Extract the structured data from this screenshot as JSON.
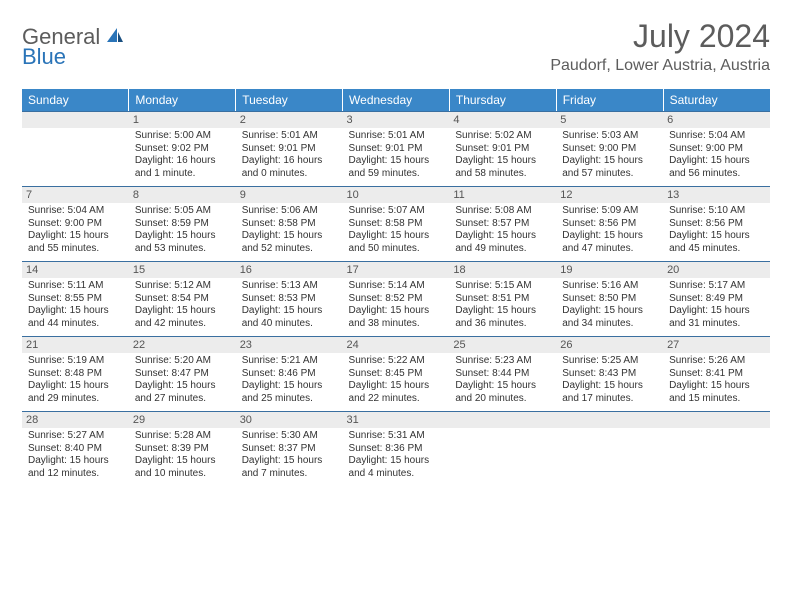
{
  "brand": {
    "general": "General",
    "blue": "Blue"
  },
  "title": "July 2024",
  "location": "Paudorf, Lower Austria, Austria",
  "colors": {
    "header_bg": "#3a87c8",
    "header_text": "#ffffff",
    "daynum_bg": "#ececec",
    "separator": "#3a6fa0",
    "text": "#333333",
    "title_text": "#5c5c5c"
  },
  "day_names": [
    "Sunday",
    "Monday",
    "Tuesday",
    "Wednesday",
    "Thursday",
    "Friday",
    "Saturday"
  ],
  "weeks": [
    [
      null,
      {
        "n": "1",
        "sr": "Sunrise: 5:00 AM",
        "ss": "Sunset: 9:02 PM",
        "d1": "Daylight: 16 hours",
        "d2": "and 1 minute."
      },
      {
        "n": "2",
        "sr": "Sunrise: 5:01 AM",
        "ss": "Sunset: 9:01 PM",
        "d1": "Daylight: 16 hours",
        "d2": "and 0 minutes."
      },
      {
        "n": "3",
        "sr": "Sunrise: 5:01 AM",
        "ss": "Sunset: 9:01 PM",
        "d1": "Daylight: 15 hours",
        "d2": "and 59 minutes."
      },
      {
        "n": "4",
        "sr": "Sunrise: 5:02 AM",
        "ss": "Sunset: 9:01 PM",
        "d1": "Daylight: 15 hours",
        "d2": "and 58 minutes."
      },
      {
        "n": "5",
        "sr": "Sunrise: 5:03 AM",
        "ss": "Sunset: 9:00 PM",
        "d1": "Daylight: 15 hours",
        "d2": "and 57 minutes."
      },
      {
        "n": "6",
        "sr": "Sunrise: 5:04 AM",
        "ss": "Sunset: 9:00 PM",
        "d1": "Daylight: 15 hours",
        "d2": "and 56 minutes."
      }
    ],
    [
      {
        "n": "7",
        "sr": "Sunrise: 5:04 AM",
        "ss": "Sunset: 9:00 PM",
        "d1": "Daylight: 15 hours",
        "d2": "and 55 minutes."
      },
      {
        "n": "8",
        "sr": "Sunrise: 5:05 AM",
        "ss": "Sunset: 8:59 PM",
        "d1": "Daylight: 15 hours",
        "d2": "and 53 minutes."
      },
      {
        "n": "9",
        "sr": "Sunrise: 5:06 AM",
        "ss": "Sunset: 8:58 PM",
        "d1": "Daylight: 15 hours",
        "d2": "and 52 minutes."
      },
      {
        "n": "10",
        "sr": "Sunrise: 5:07 AM",
        "ss": "Sunset: 8:58 PM",
        "d1": "Daylight: 15 hours",
        "d2": "and 50 minutes."
      },
      {
        "n": "11",
        "sr": "Sunrise: 5:08 AM",
        "ss": "Sunset: 8:57 PM",
        "d1": "Daylight: 15 hours",
        "d2": "and 49 minutes."
      },
      {
        "n": "12",
        "sr": "Sunrise: 5:09 AM",
        "ss": "Sunset: 8:56 PM",
        "d1": "Daylight: 15 hours",
        "d2": "and 47 minutes."
      },
      {
        "n": "13",
        "sr": "Sunrise: 5:10 AM",
        "ss": "Sunset: 8:56 PM",
        "d1": "Daylight: 15 hours",
        "d2": "and 45 minutes."
      }
    ],
    [
      {
        "n": "14",
        "sr": "Sunrise: 5:11 AM",
        "ss": "Sunset: 8:55 PM",
        "d1": "Daylight: 15 hours",
        "d2": "and 44 minutes."
      },
      {
        "n": "15",
        "sr": "Sunrise: 5:12 AM",
        "ss": "Sunset: 8:54 PM",
        "d1": "Daylight: 15 hours",
        "d2": "and 42 minutes."
      },
      {
        "n": "16",
        "sr": "Sunrise: 5:13 AM",
        "ss": "Sunset: 8:53 PM",
        "d1": "Daylight: 15 hours",
        "d2": "and 40 minutes."
      },
      {
        "n": "17",
        "sr": "Sunrise: 5:14 AM",
        "ss": "Sunset: 8:52 PM",
        "d1": "Daylight: 15 hours",
        "d2": "and 38 minutes."
      },
      {
        "n": "18",
        "sr": "Sunrise: 5:15 AM",
        "ss": "Sunset: 8:51 PM",
        "d1": "Daylight: 15 hours",
        "d2": "and 36 minutes."
      },
      {
        "n": "19",
        "sr": "Sunrise: 5:16 AM",
        "ss": "Sunset: 8:50 PM",
        "d1": "Daylight: 15 hours",
        "d2": "and 34 minutes."
      },
      {
        "n": "20",
        "sr": "Sunrise: 5:17 AM",
        "ss": "Sunset: 8:49 PM",
        "d1": "Daylight: 15 hours",
        "d2": "and 31 minutes."
      }
    ],
    [
      {
        "n": "21",
        "sr": "Sunrise: 5:19 AM",
        "ss": "Sunset: 8:48 PM",
        "d1": "Daylight: 15 hours",
        "d2": "and 29 minutes."
      },
      {
        "n": "22",
        "sr": "Sunrise: 5:20 AM",
        "ss": "Sunset: 8:47 PM",
        "d1": "Daylight: 15 hours",
        "d2": "and 27 minutes."
      },
      {
        "n": "23",
        "sr": "Sunrise: 5:21 AM",
        "ss": "Sunset: 8:46 PM",
        "d1": "Daylight: 15 hours",
        "d2": "and 25 minutes."
      },
      {
        "n": "24",
        "sr": "Sunrise: 5:22 AM",
        "ss": "Sunset: 8:45 PM",
        "d1": "Daylight: 15 hours",
        "d2": "and 22 minutes."
      },
      {
        "n": "25",
        "sr": "Sunrise: 5:23 AM",
        "ss": "Sunset: 8:44 PM",
        "d1": "Daylight: 15 hours",
        "d2": "and 20 minutes."
      },
      {
        "n": "26",
        "sr": "Sunrise: 5:25 AM",
        "ss": "Sunset: 8:43 PM",
        "d1": "Daylight: 15 hours",
        "d2": "and 17 minutes."
      },
      {
        "n": "27",
        "sr": "Sunrise: 5:26 AM",
        "ss": "Sunset: 8:41 PM",
        "d1": "Daylight: 15 hours",
        "d2": "and 15 minutes."
      }
    ],
    [
      {
        "n": "28",
        "sr": "Sunrise: 5:27 AM",
        "ss": "Sunset: 8:40 PM",
        "d1": "Daylight: 15 hours",
        "d2": "and 12 minutes."
      },
      {
        "n": "29",
        "sr": "Sunrise: 5:28 AM",
        "ss": "Sunset: 8:39 PM",
        "d1": "Daylight: 15 hours",
        "d2": "and 10 minutes."
      },
      {
        "n": "30",
        "sr": "Sunrise: 5:30 AM",
        "ss": "Sunset: 8:37 PM",
        "d1": "Daylight: 15 hours",
        "d2": "and 7 minutes."
      },
      {
        "n": "31",
        "sr": "Sunrise: 5:31 AM",
        "ss": "Sunset: 8:36 PM",
        "d1": "Daylight: 15 hours",
        "d2": "and 4 minutes."
      },
      null,
      null,
      null
    ]
  ]
}
